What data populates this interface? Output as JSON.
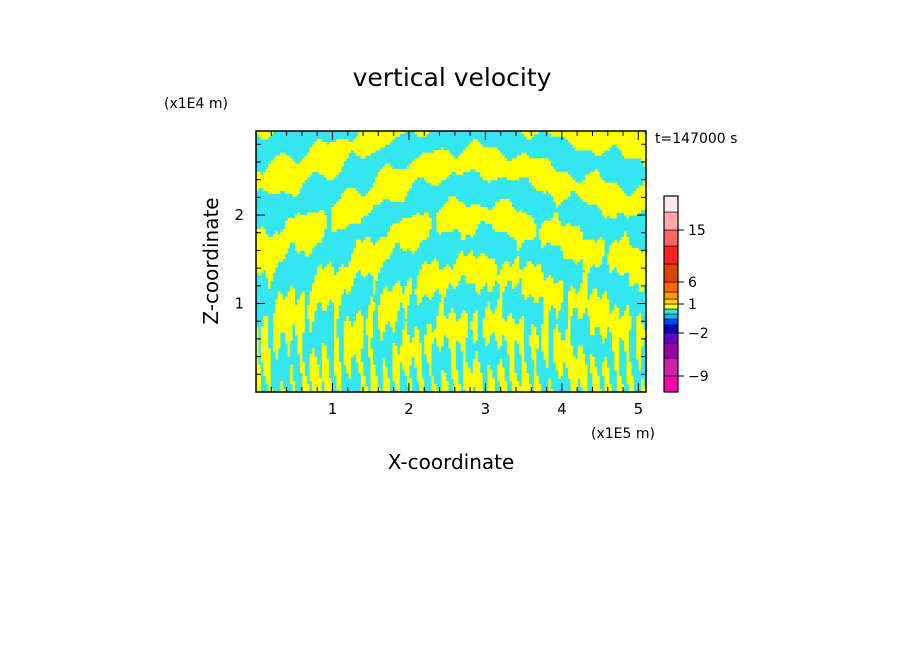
{
  "chart_data": {
    "type": "heatmap",
    "title": "vertical velocity",
    "time_label": "t=147000 s",
    "xlabel": "X-coordinate",
    "ylabel": "Z-coordinate",
    "x_unit": "(x1E5 m)",
    "y_unit": "(x1E4 m)",
    "xlim": [
      0,
      5.1
    ],
    "ylim": [
      0,
      2.95
    ],
    "x_ticks": [
      1,
      2,
      3,
      4,
      5
    ],
    "y_ticks": [
      1,
      2
    ],
    "field_colors": {
      "negative": "#33e6f0",
      "positive": "#ffff00"
    },
    "colorbar": {
      "levels": [
        -12,
        -9,
        -6,
        -4,
        -2,
        -1,
        -0.5,
        0,
        0.5,
        1,
        2,
        4,
        6,
        9,
        12,
        15,
        18,
        21
      ],
      "colors": [
        "#ff00aa",
        "#cc22aa",
        "#9900aa",
        "#6600cc",
        "#0000cc",
        "#0044ee",
        "#00bbff",
        "#33e6f0",
        "#ffff00",
        "#ffcc00",
        "#ff9900",
        "#ff6600",
        "#dd4400",
        "#ff2020",
        "#ff6666",
        "#ffaaaa",
        "#ffe8e8"
      ],
      "tick_labels": [
        {
          "value": 15,
          "label": "15"
        },
        {
          "value": 6,
          "label": "6"
        },
        {
          "value": 1,
          "label": "1"
        },
        {
          "value": -2,
          "label": "−2"
        },
        {
          "value": -9,
          "label": "−9"
        }
      ]
    }
  }
}
